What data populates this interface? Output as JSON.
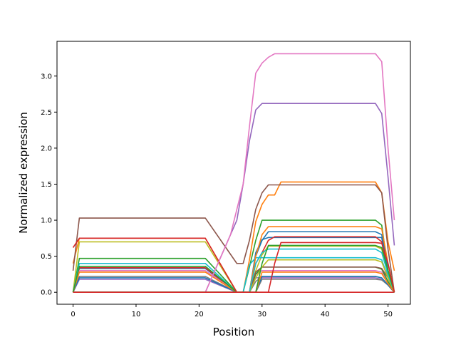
{
  "chart_data": {
    "type": "line",
    "title": "",
    "xlabel": "Position",
    "ylabel": "Normalized expression",
    "xlim": [
      -2.55,
      53.55
    ],
    "ylim": [
      -0.166,
      3.482
    ],
    "xticks": [
      0,
      10,
      20,
      30,
      40,
      50
    ],
    "xtick_labels": [
      "0",
      "10",
      "20",
      "30",
      "40",
      "50"
    ],
    "yticks": [
      0.0,
      0.5,
      1.0,
      1.5,
      2.0,
      2.5,
      3.0
    ],
    "ytick_labels": [
      "0.0",
      "0.5",
      "1.0",
      "1.5",
      "2.0",
      "2.5",
      "3.0"
    ],
    "grid": false,
    "legend": "none",
    "series": [
      {
        "color": "#1f77b4",
        "x": [
          0,
          1,
          21,
          26,
          27,
          28,
          29,
          30,
          31,
          48,
          49,
          50,
          51
        ],
        "y": [
          0,
          0.33,
          0.33,
          0,
          0,
          0,
          0.55,
          0.73,
          0.76,
          0.76,
          0.76,
          0.2,
          0
        ]
      },
      {
        "color": "#ff7f0e",
        "x": [
          0,
          1,
          21,
          26,
          27,
          28,
          29,
          30,
          31,
          32,
          33,
          48,
          49,
          50,
          51
        ],
        "y": [
          0.4,
          0.75,
          0.75,
          0,
          0,
          0.45,
          0.98,
          1.22,
          1.35,
          1.35,
          1.53,
          1.53,
          1.38,
          0.7,
          0.3
        ]
      },
      {
        "color": "#2ca02c",
        "x": [
          0,
          1,
          21,
          26,
          27,
          28,
          29,
          30,
          48,
          49,
          50,
          51
        ],
        "y": [
          0,
          0.47,
          0.47,
          0,
          0,
          0.35,
          0.72,
          1.0,
          1.0,
          0.93,
          0.3,
          0
        ]
      },
      {
        "color": "#d62728",
        "x": [
          0,
          1,
          21,
          26,
          27,
          28,
          29,
          30,
          31,
          32,
          48,
          49,
          50,
          51
        ],
        "y": [
          0,
          0.34,
          0.34,
          0,
          0,
          0,
          0.4,
          0.55,
          0.72,
          0.77,
          0.77,
          0.7,
          0.3,
          0
        ]
      },
      {
        "color": "#9467bd",
        "x": [
          0,
          1,
          21,
          26,
          27,
          28,
          29,
          30,
          48,
          49,
          50,
          51
        ],
        "y": [
          0,
          0.18,
          0.18,
          0,
          0,
          0,
          0.2,
          0.2,
          0.2,
          0.18,
          0.1,
          0
        ]
      },
      {
        "color": "#8c564b",
        "x": [
          0,
          1,
          21,
          26,
          27,
          28,
          29,
          30,
          31,
          48,
          49,
          50,
          51
        ],
        "y": [
          0.3,
          1.03,
          1.03,
          0.4,
          0.4,
          0.72,
          1.15,
          1.38,
          1.49,
          1.49,
          1.38,
          0.6,
          0
        ]
      },
      {
        "color": "#e377c2",
        "x": [
          0,
          1,
          21,
          26,
          27,
          28,
          29,
          30,
          48,
          49,
          50,
          51
        ],
        "y": [
          0,
          0.3,
          0.3,
          0,
          0,
          0,
          0.25,
          0.3,
          0.3,
          0.28,
          0.15,
          0
        ]
      },
      {
        "color": "#7f7f7f",
        "x": [
          0,
          1,
          21,
          26,
          27,
          28,
          29,
          30,
          48,
          49,
          50,
          51
        ],
        "y": [
          0,
          0.22,
          0.22,
          0,
          0,
          0,
          0.15,
          0.22,
          0.22,
          0.2,
          0.1,
          0
        ]
      },
      {
        "color": "#bcbd22",
        "x": [
          0,
          1,
          21,
          26,
          27,
          28,
          29,
          30,
          31,
          48,
          49,
          50,
          51
        ],
        "y": [
          0,
          0.7,
          0.7,
          0,
          0,
          0,
          0.3,
          0.52,
          0.64,
          0.64,
          0.6,
          0.25,
          0
        ]
      },
      {
        "color": "#17becf",
        "x": [
          0,
          1,
          21,
          26,
          27,
          28,
          29,
          30,
          48,
          49,
          50,
          51
        ],
        "y": [
          0,
          0.4,
          0.4,
          0,
          0,
          0.38,
          0.48,
          0.48,
          0.48,
          0.45,
          0.2,
          0
        ]
      },
      {
        "color": "#1f77b4",
        "x": [
          0,
          1,
          21,
          26,
          27,
          28,
          29,
          30,
          31,
          48,
          49,
          50,
          51
        ],
        "y": [
          0,
          0.2,
          0.2,
          0,
          0,
          0,
          0.5,
          0.72,
          0.84,
          0.84,
          0.8,
          0.3,
          0
        ]
      },
      {
        "color": "#ff7f0e",
        "x": [
          0,
          1,
          21,
          26,
          27,
          28,
          29,
          30,
          31,
          48,
          49,
          50,
          51
        ],
        "y": [
          0,
          0.28,
          0.28,
          0,
          0,
          0,
          0.5,
          0.8,
          0.91,
          0.91,
          0.88,
          0.4,
          0
        ]
      },
      {
        "color": "#2ca02c",
        "x": [
          0,
          1,
          21,
          26,
          27,
          28,
          29,
          30,
          48,
          49,
          50,
          51
        ],
        "y": [
          0,
          0.36,
          0.36,
          0,
          0,
          0,
          0.25,
          0.35,
          0.35,
          0.32,
          0.15,
          0
        ]
      },
      {
        "color": "#d62728",
        "x": [
          0,
          1,
          21,
          26,
          27,
          28,
          29,
          30,
          48,
          49,
          50,
          51
        ],
        "y": [
          0.62,
          0.75,
          0.75,
          0,
          0,
          0,
          0,
          0,
          0,
          0,
          0,
          0
        ]
      },
      {
        "color": "#9467bd",
        "x": [
          0,
          1,
          21,
          26,
          27,
          28,
          29,
          30,
          31,
          48,
          49,
          50,
          51
        ],
        "y": [
          0,
          0,
          0,
          1.0,
          1.5,
          2.1,
          2.53,
          2.62,
          2.62,
          2.62,
          2.48,
          1.6,
          0.65
        ]
      },
      {
        "color": "#8c564b",
        "x": [
          0,
          1,
          21,
          26,
          27,
          28,
          29,
          30,
          48,
          49,
          50,
          51
        ],
        "y": [
          0,
          0,
          0,
          0,
          0,
          0,
          0.28,
          0.35,
          0.35,
          0.33,
          0.2,
          0
        ]
      },
      {
        "color": "#e377c2",
        "x": [
          0,
          1,
          21,
          22,
          23,
          24,
          25,
          26,
          27,
          28,
          29,
          30,
          31,
          32,
          48,
          49,
          50,
          51
        ],
        "y": [
          0,
          0,
          0,
          0.2,
          0.4,
          0.6,
          0.8,
          1.15,
          1.5,
          2.3,
          3.04,
          3.18,
          3.26,
          3.31,
          3.31,
          3.2,
          2.0,
          1.0
        ]
      },
      {
        "color": "#7f7f7f",
        "x": [
          0,
          1,
          21,
          26,
          27,
          28,
          29,
          30,
          48,
          49,
          50,
          51
        ],
        "y": [
          0,
          0,
          0,
          0,
          0,
          0,
          0,
          0.18,
          0.18,
          0.17,
          0.1,
          0
        ]
      },
      {
        "color": "#bcbd22",
        "x": [
          0,
          1,
          21,
          26,
          27,
          28,
          29,
          30,
          31,
          48,
          49,
          50,
          51
        ],
        "y": [
          0,
          0,
          0,
          0,
          0,
          0,
          0.2,
          0.35,
          0.45,
          0.45,
          0.42,
          0.2,
          0
        ]
      },
      {
        "color": "#17becf",
        "x": [
          0,
          1,
          21,
          26,
          27,
          28,
          29,
          30,
          31,
          48,
          49,
          50,
          51
        ],
        "y": [
          0,
          0,
          0,
          0,
          0,
          0,
          0.4,
          0.55,
          0.6,
          0.6,
          0.55,
          0.25,
          0
        ]
      },
      {
        "color": "#1f77b4",
        "x": [
          0,
          1,
          21,
          26,
          27,
          28,
          29,
          30,
          48,
          49,
          50,
          51
        ],
        "y": [
          0,
          0,
          0,
          0,
          0,
          0,
          0,
          0.22,
          0.22,
          0.2,
          0.1,
          0
        ]
      },
      {
        "color": "#ff7f0e",
        "x": [
          0,
          1,
          21,
          26,
          27,
          28,
          29,
          30,
          48,
          49,
          50,
          51
        ],
        "y": [
          0,
          0,
          0,
          0,
          0,
          0,
          0,
          0.28,
          0.28,
          0.26,
          0.12,
          0
        ]
      },
      {
        "color": "#2ca02c",
        "x": [
          0,
          1,
          21,
          26,
          27,
          28,
          29,
          30,
          31,
          48,
          49,
          50,
          51
        ],
        "y": [
          0,
          0,
          0,
          0,
          0,
          0,
          0,
          0.4,
          0.65,
          0.65,
          0.62,
          0.3,
          0
        ]
      },
      {
        "color": "#d62728",
        "x": [
          0,
          1,
          21,
          26,
          27,
          28,
          29,
          30,
          31,
          32,
          33,
          48,
          49,
          50,
          51
        ],
        "y": [
          0,
          0,
          0,
          0,
          0,
          0,
          0,
          0,
          0,
          0.4,
          0.69,
          0.69,
          0.68,
          0.4,
          0
        ]
      }
    ]
  }
}
